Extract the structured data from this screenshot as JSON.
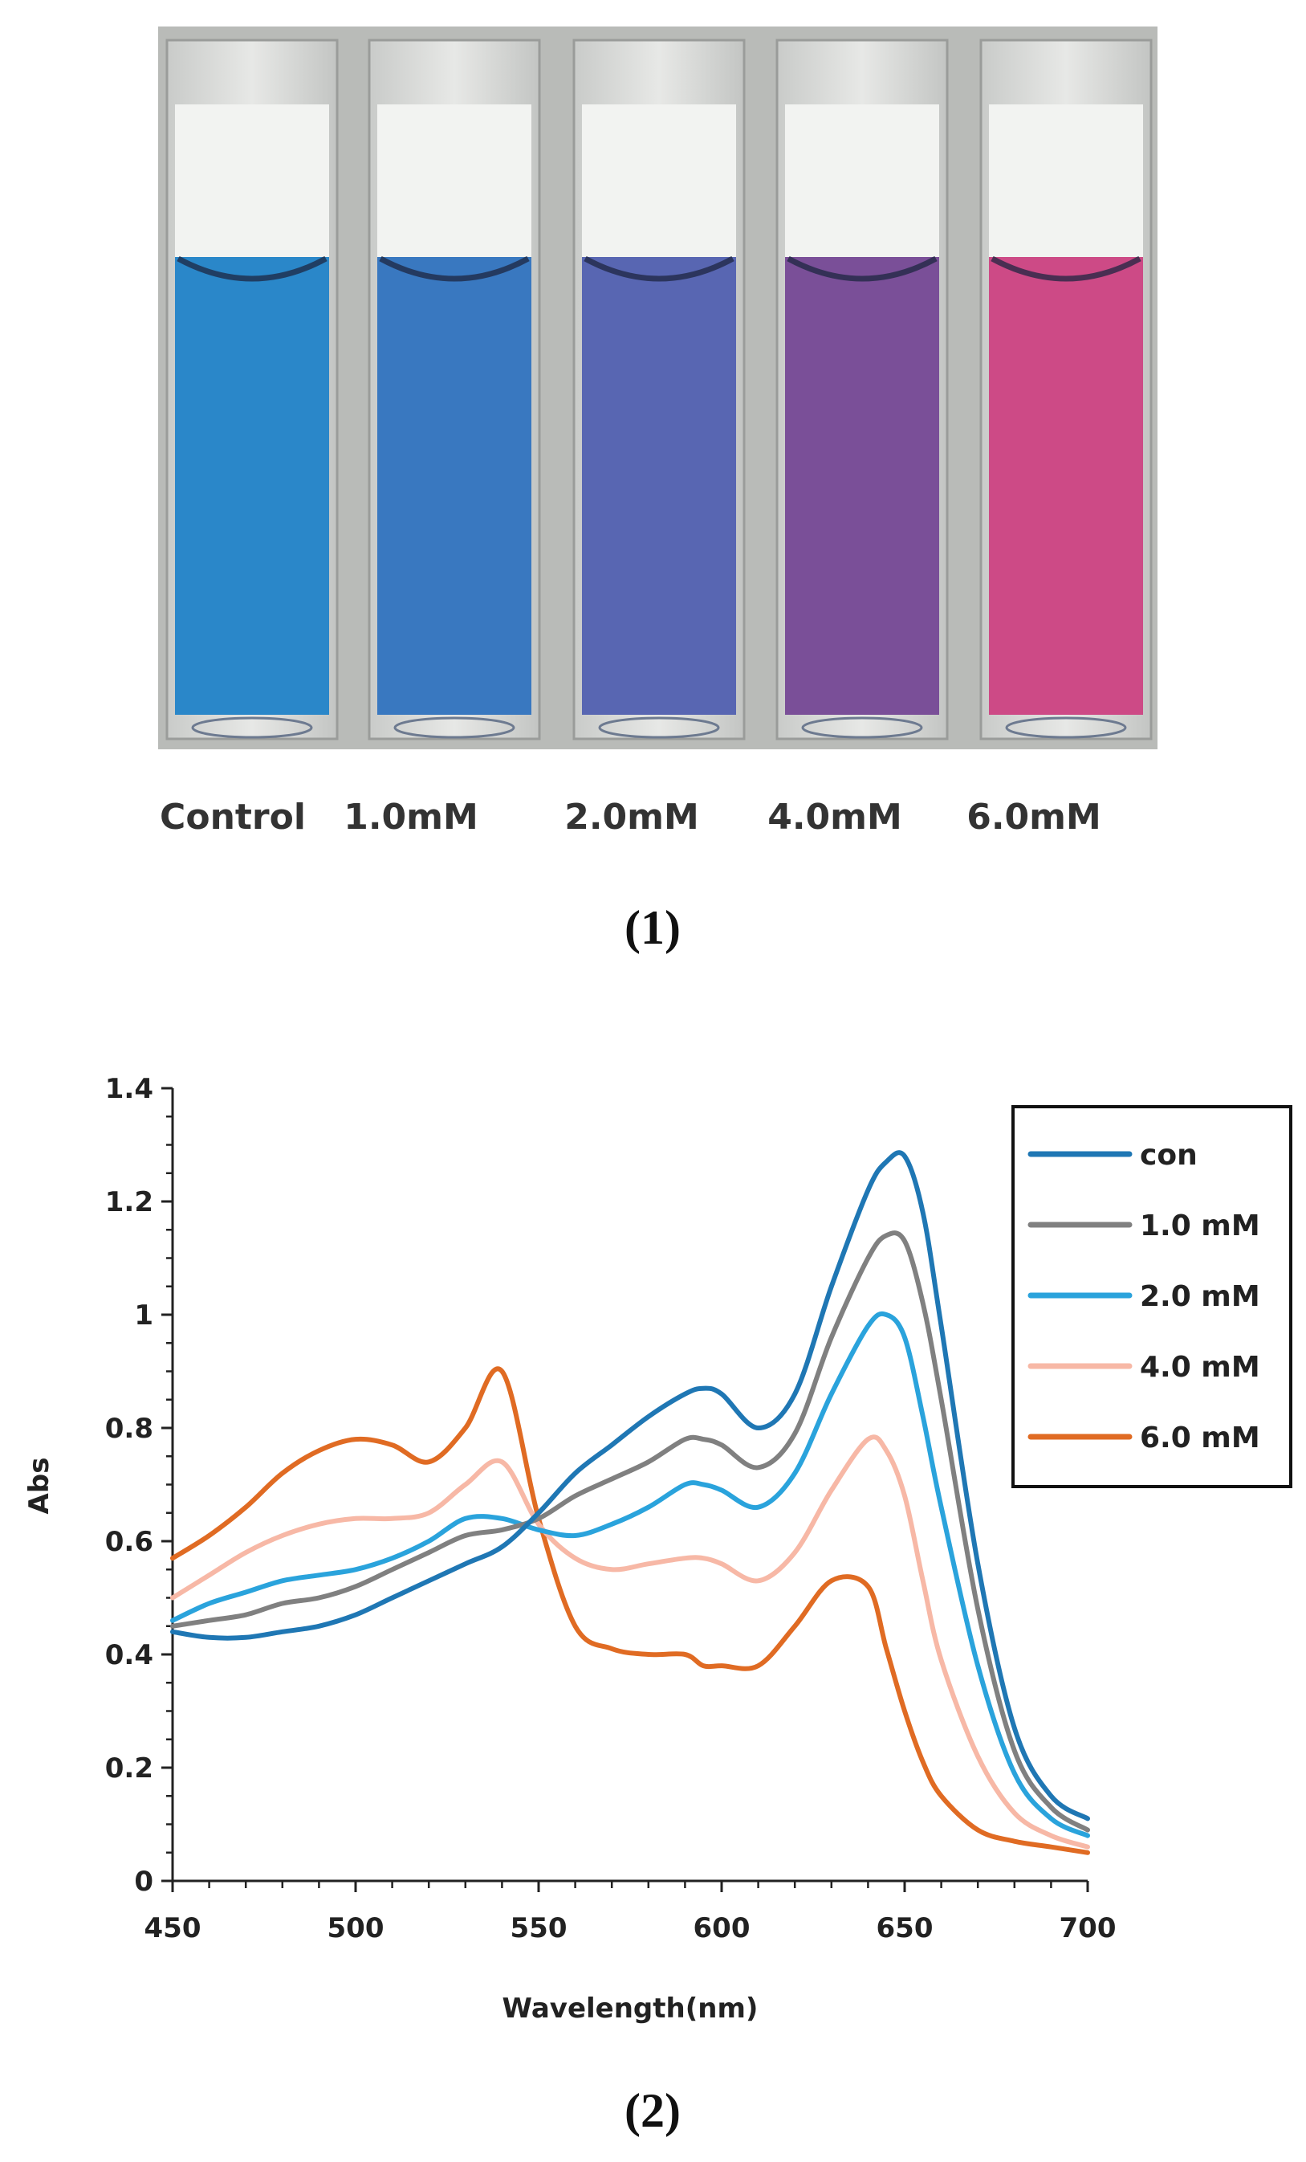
{
  "photo": {
    "samples": [
      {
        "label": "Control",
        "color": "#2a87c9"
      },
      {
        "label": "1.0mM",
        "color": "#3978c0"
      },
      {
        "label": "2.0mM",
        "color": "#5866b2"
      },
      {
        "label": "4.0mM",
        "color": "#7a4f98"
      },
      {
        "label": "6.0mM",
        "color": "#cd4a86"
      }
    ],
    "caption": "(1)"
  },
  "chart_caption": "(2)",
  "chart_data": {
    "type": "line",
    "title": "",
    "xlabel": "Wavelength(nm)",
    "ylabel": "Abs",
    "xlim": [
      450,
      700
    ],
    "ylim": [
      0,
      1.4
    ],
    "xticks": [
      450,
      500,
      550,
      600,
      650,
      700
    ],
    "yticks": [
      0,
      0.2,
      0.4,
      0.6,
      0.8,
      1,
      1.2,
      1.4
    ],
    "ytick_labels": [
      "0",
      "0.2",
      "0.4",
      "0.6",
      "0.8",
      "1",
      "1.2",
      "1.4"
    ],
    "grid": false,
    "legend_position": "top-right",
    "x": [
      450,
      460,
      470,
      480,
      490,
      500,
      510,
      520,
      530,
      540,
      550,
      560,
      570,
      580,
      590,
      595,
      600,
      610,
      620,
      630,
      640,
      645,
      650,
      655,
      660,
      670,
      680,
      690,
      700
    ],
    "series": [
      {
        "name": "con",
        "color": "#1f77b4",
        "values": [
          0.44,
          0.43,
          0.43,
          0.44,
          0.45,
          0.47,
          0.5,
          0.53,
          0.56,
          0.59,
          0.65,
          0.72,
          0.77,
          0.82,
          0.86,
          0.87,
          0.86,
          0.8,
          0.86,
          1.05,
          1.22,
          1.27,
          1.28,
          1.18,
          0.98,
          0.56,
          0.27,
          0.15,
          0.11
        ]
      },
      {
        "name": "1.0 mM",
        "color": "#808080",
        "values": [
          0.45,
          0.46,
          0.47,
          0.49,
          0.5,
          0.52,
          0.55,
          0.58,
          0.61,
          0.62,
          0.64,
          0.68,
          0.71,
          0.74,
          0.78,
          0.78,
          0.77,
          0.73,
          0.79,
          0.96,
          1.1,
          1.14,
          1.13,
          1.02,
          0.85,
          0.48,
          0.23,
          0.13,
          0.09
        ]
      },
      {
        "name": "2.0 mM",
        "color": "#2aa3dc",
        "values": [
          0.46,
          0.49,
          0.51,
          0.53,
          0.54,
          0.55,
          0.57,
          0.6,
          0.64,
          0.64,
          0.62,
          0.61,
          0.63,
          0.66,
          0.7,
          0.7,
          0.69,
          0.66,
          0.72,
          0.86,
          0.98,
          1.0,
          0.96,
          0.82,
          0.66,
          0.38,
          0.19,
          0.11,
          0.08
        ]
      },
      {
        "name": "4.0 mM",
        "color": "#f7b8a6",
        "values": [
          0.5,
          0.54,
          0.58,
          0.61,
          0.63,
          0.64,
          0.64,
          0.65,
          0.7,
          0.74,
          0.63,
          0.57,
          0.55,
          0.56,
          0.57,
          0.57,
          0.56,
          0.53,
          0.58,
          0.69,
          0.78,
          0.76,
          0.68,
          0.53,
          0.39,
          0.22,
          0.12,
          0.08,
          0.06
        ]
      },
      {
        "name": "6.0 mM",
        "color": "#e06b23",
        "values": [
          0.57,
          0.61,
          0.66,
          0.72,
          0.76,
          0.78,
          0.77,
          0.74,
          0.8,
          0.9,
          0.64,
          0.45,
          0.41,
          0.4,
          0.4,
          0.38,
          0.38,
          0.38,
          0.45,
          0.53,
          0.52,
          0.41,
          0.3,
          0.21,
          0.15,
          0.09,
          0.07,
          0.06,
          0.05
        ]
      }
    ]
  }
}
